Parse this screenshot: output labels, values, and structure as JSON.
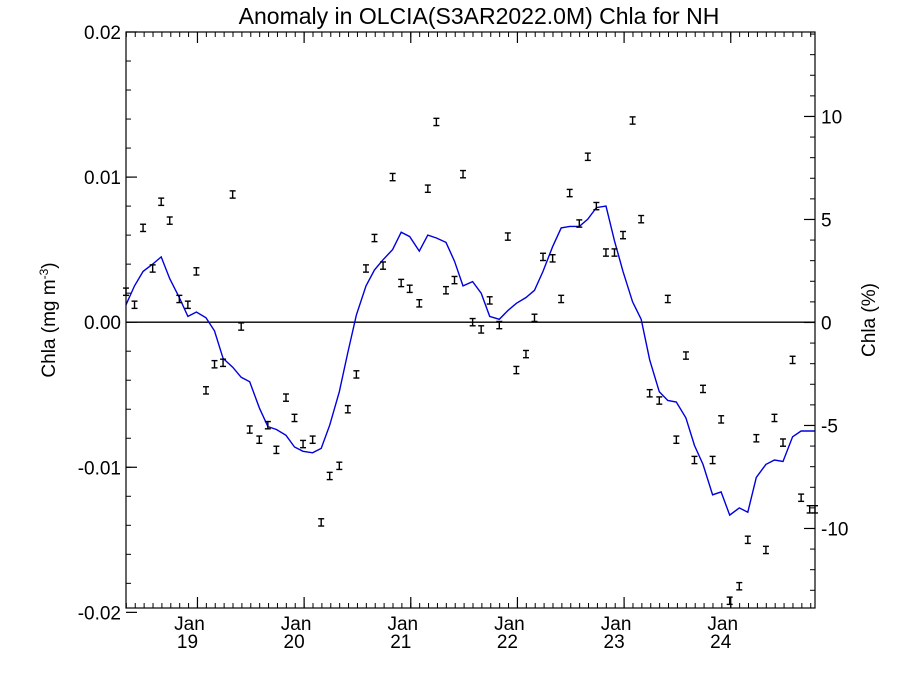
{
  "chart_data": {
    "type": "line",
    "title": "Anomaly in OLCIA(S3AR2022.0M) Chla for NH",
    "ylabel": "Chla (mg m",
    "ylabel_superscript": "-3",
    "ylabel_close": ")",
    "y2label": "Chla (%)",
    "ylim": [
      -0.0197,
      0.02
    ],
    "y2lim": [
      -13.86,
      14.1
    ],
    "yticks": [
      {
        "value": 0.02,
        "label": "0.02"
      },
      {
        "value": 0.01,
        "label": "0.01"
      },
      {
        "value": 0.0,
        "label": "0.00"
      },
      {
        "value": -0.01,
        "label": "-0.01"
      },
      {
        "value": -0.02,
        "label": "-0.02"
      }
    ],
    "y2ticks": [
      {
        "value": 10,
        "label": "10"
      },
      {
        "value": 5,
        "label": "5"
      },
      {
        "value": 0,
        "label": "0"
      },
      {
        "value": -5,
        "label": "-5"
      },
      {
        "value": -10,
        "label": "-10"
      }
    ],
    "xlim": [
      2018.33,
      2024.79
    ],
    "xticks": [
      {
        "value": 2019.0,
        "month": "Jan",
        "year": "19"
      },
      {
        "value": 2020.0,
        "month": "Jan",
        "year": "20"
      },
      {
        "value": 2021.0,
        "month": "Jan",
        "year": "21"
      },
      {
        "value": 2022.0,
        "month": "Jan",
        "year": "22"
      },
      {
        "value": 2023.0,
        "month": "Jan",
        "year": "23"
      },
      {
        "value": 2024.0,
        "month": "Jan",
        "year": "24"
      }
    ],
    "zero_line": 0.0,
    "colors": {
      "line": "#0000dd",
      "points": "#000000",
      "axes": "#000000"
    },
    "series": [
      {
        "kind": "error_points",
        "x": [
          2018.33,
          2018.41,
          2018.49,
          2018.58,
          2018.66,
          2018.74,
          2018.83,
          2018.91,
          2018.99,
          2019.08,
          2019.16,
          2019.24,
          2019.33,
          2019.41,
          2019.49,
          2019.58,
          2019.66,
          2019.74,
          2019.83,
          2019.91,
          2019.99,
          2020.08,
          2020.16,
          2020.24,
          2020.33,
          2020.41,
          2020.49,
          2020.58,
          2020.66,
          2020.74,
          2020.83,
          2020.91,
          2020.99,
          2021.08,
          2021.16,
          2021.24,
          2021.33,
          2021.41,
          2021.49,
          2021.58,
          2021.66,
          2021.74,
          2021.83,
          2021.91,
          2021.99,
          2022.08,
          2022.16,
          2022.24,
          2022.33,
          2022.41,
          2022.49,
          2022.58,
          2022.66,
          2022.74,
          2022.83,
          2022.91,
          2022.99,
          2023.08,
          2023.16,
          2023.24,
          2023.33,
          2023.41,
          2023.49,
          2023.58,
          2023.66,
          2023.74,
          2023.83,
          2023.91,
          2023.99,
          2024.08,
          2024.16,
          2024.24,
          2024.33,
          2024.41,
          2024.49,
          2024.58,
          2024.66,
          2024.74,
          2024.79
        ],
        "y": [
          0.0021,
          0.0012,
          0.0065,
          0.0037,
          0.0083,
          0.007,
          0.0016,
          0.0012,
          0.0035,
          -0.0047,
          -0.0029,
          -0.0028,
          0.0088,
          -0.0003,
          -0.0074,
          -0.0081,
          -0.0071,
          -0.0088,
          -0.0052,
          -0.0066,
          -0.0084,
          -0.0081,
          -0.0138,
          -0.0106,
          -0.0099,
          -0.006,
          -0.0036,
          0.0037,
          0.0058,
          0.0039,
          0.01,
          0.0027,
          0.0023,
          0.0013,
          0.0092,
          0.0138,
          0.0022,
          0.0029,
          0.0102,
          0.0,
          -0.0005,
          0.0015,
          -0.0002,
          0.0059,
          -0.0033,
          -0.0022,
          0.0003,
          0.0045,
          0.0044,
          0.0016,
          0.0089,
          0.0068,
          0.0114,
          0.008,
          0.0048,
          0.0048,
          0.006,
          0.0139,
          0.0071,
          -0.0049,
          -0.0054,
          0.0016,
          -0.0081,
          -0.0023,
          -0.0095,
          -0.0046,
          -0.0095,
          -0.0067,
          -0.0192,
          -0.0182,
          -0.015,
          -0.008,
          -0.0157,
          -0.0066,
          -0.0083,
          -0.0026,
          -0.0121,
          -0.0129,
          -0.0129
        ],
        "err": 0.00025
      },
      {
        "kind": "line",
        "x": [
          2018.33,
          2018.41,
          2018.49,
          2018.58,
          2018.66,
          2018.74,
          2018.83,
          2018.91,
          2018.99,
          2019.08,
          2019.16,
          2019.24,
          2019.33,
          2019.41,
          2019.49,
          2019.58,
          2019.66,
          2019.74,
          2019.83,
          2019.91,
          2019.99,
          2020.08,
          2020.16,
          2020.24,
          2020.33,
          2020.41,
          2020.49,
          2020.58,
          2020.66,
          2020.74,
          2020.83,
          2020.91,
          2020.99,
          2021.08,
          2021.16,
          2021.24,
          2021.33,
          2021.41,
          2021.49,
          2021.58,
          2021.66,
          2021.74,
          2021.83,
          2021.91,
          2021.99,
          2022.08,
          2022.16,
          2022.24,
          2022.33,
          2022.41,
          2022.49,
          2022.58,
          2022.66,
          2022.74,
          2022.83,
          2022.91,
          2022.99,
          2023.08,
          2023.16,
          2023.24,
          2023.33,
          2023.41,
          2023.49,
          2023.58,
          2023.66,
          2023.74,
          2023.83,
          2023.91,
          2023.99,
          2024.08,
          2024.16,
          2024.24,
          2024.33,
          2024.41,
          2024.49,
          2024.58,
          2024.66,
          2024.74,
          2024.79
        ],
        "y": [
          0.0012,
          0.0025,
          0.0035,
          0.004,
          0.0045,
          0.003,
          0.0017,
          0.0004,
          0.0007,
          0.0003,
          -0.0006,
          -0.0025,
          -0.0031,
          -0.0038,
          -0.0041,
          -0.0059,
          -0.0072,
          -0.0074,
          -0.0078,
          -0.0086,
          -0.0089,
          -0.009,
          -0.0087,
          -0.0071,
          -0.0048,
          -0.0021,
          0.0005,
          0.0025,
          0.0036,
          0.0043,
          0.005,
          0.0062,
          0.0059,
          0.0049,
          0.006,
          0.0058,
          0.0055,
          0.0042,
          0.0025,
          0.0028,
          0.002,
          0.0004,
          0.0002,
          0.0008,
          0.0013,
          0.0017,
          0.0022,
          0.0035,
          0.0052,
          0.0065,
          0.0066,
          0.0066,
          0.0071,
          0.0079,
          0.008,
          0.0056,
          0.0035,
          0.0014,
          0.0002,
          -0.0026,
          -0.0048,
          -0.0054,
          -0.0055,
          -0.0066,
          -0.0085,
          -0.0098,
          -0.0119,
          -0.0117,
          -0.0133,
          -0.0128,
          -0.0131,
          -0.0107,
          -0.0098,
          -0.0095,
          -0.0096,
          -0.0079,
          -0.0075,
          -0.0075,
          -0.0075
        ]
      }
    ]
  }
}
